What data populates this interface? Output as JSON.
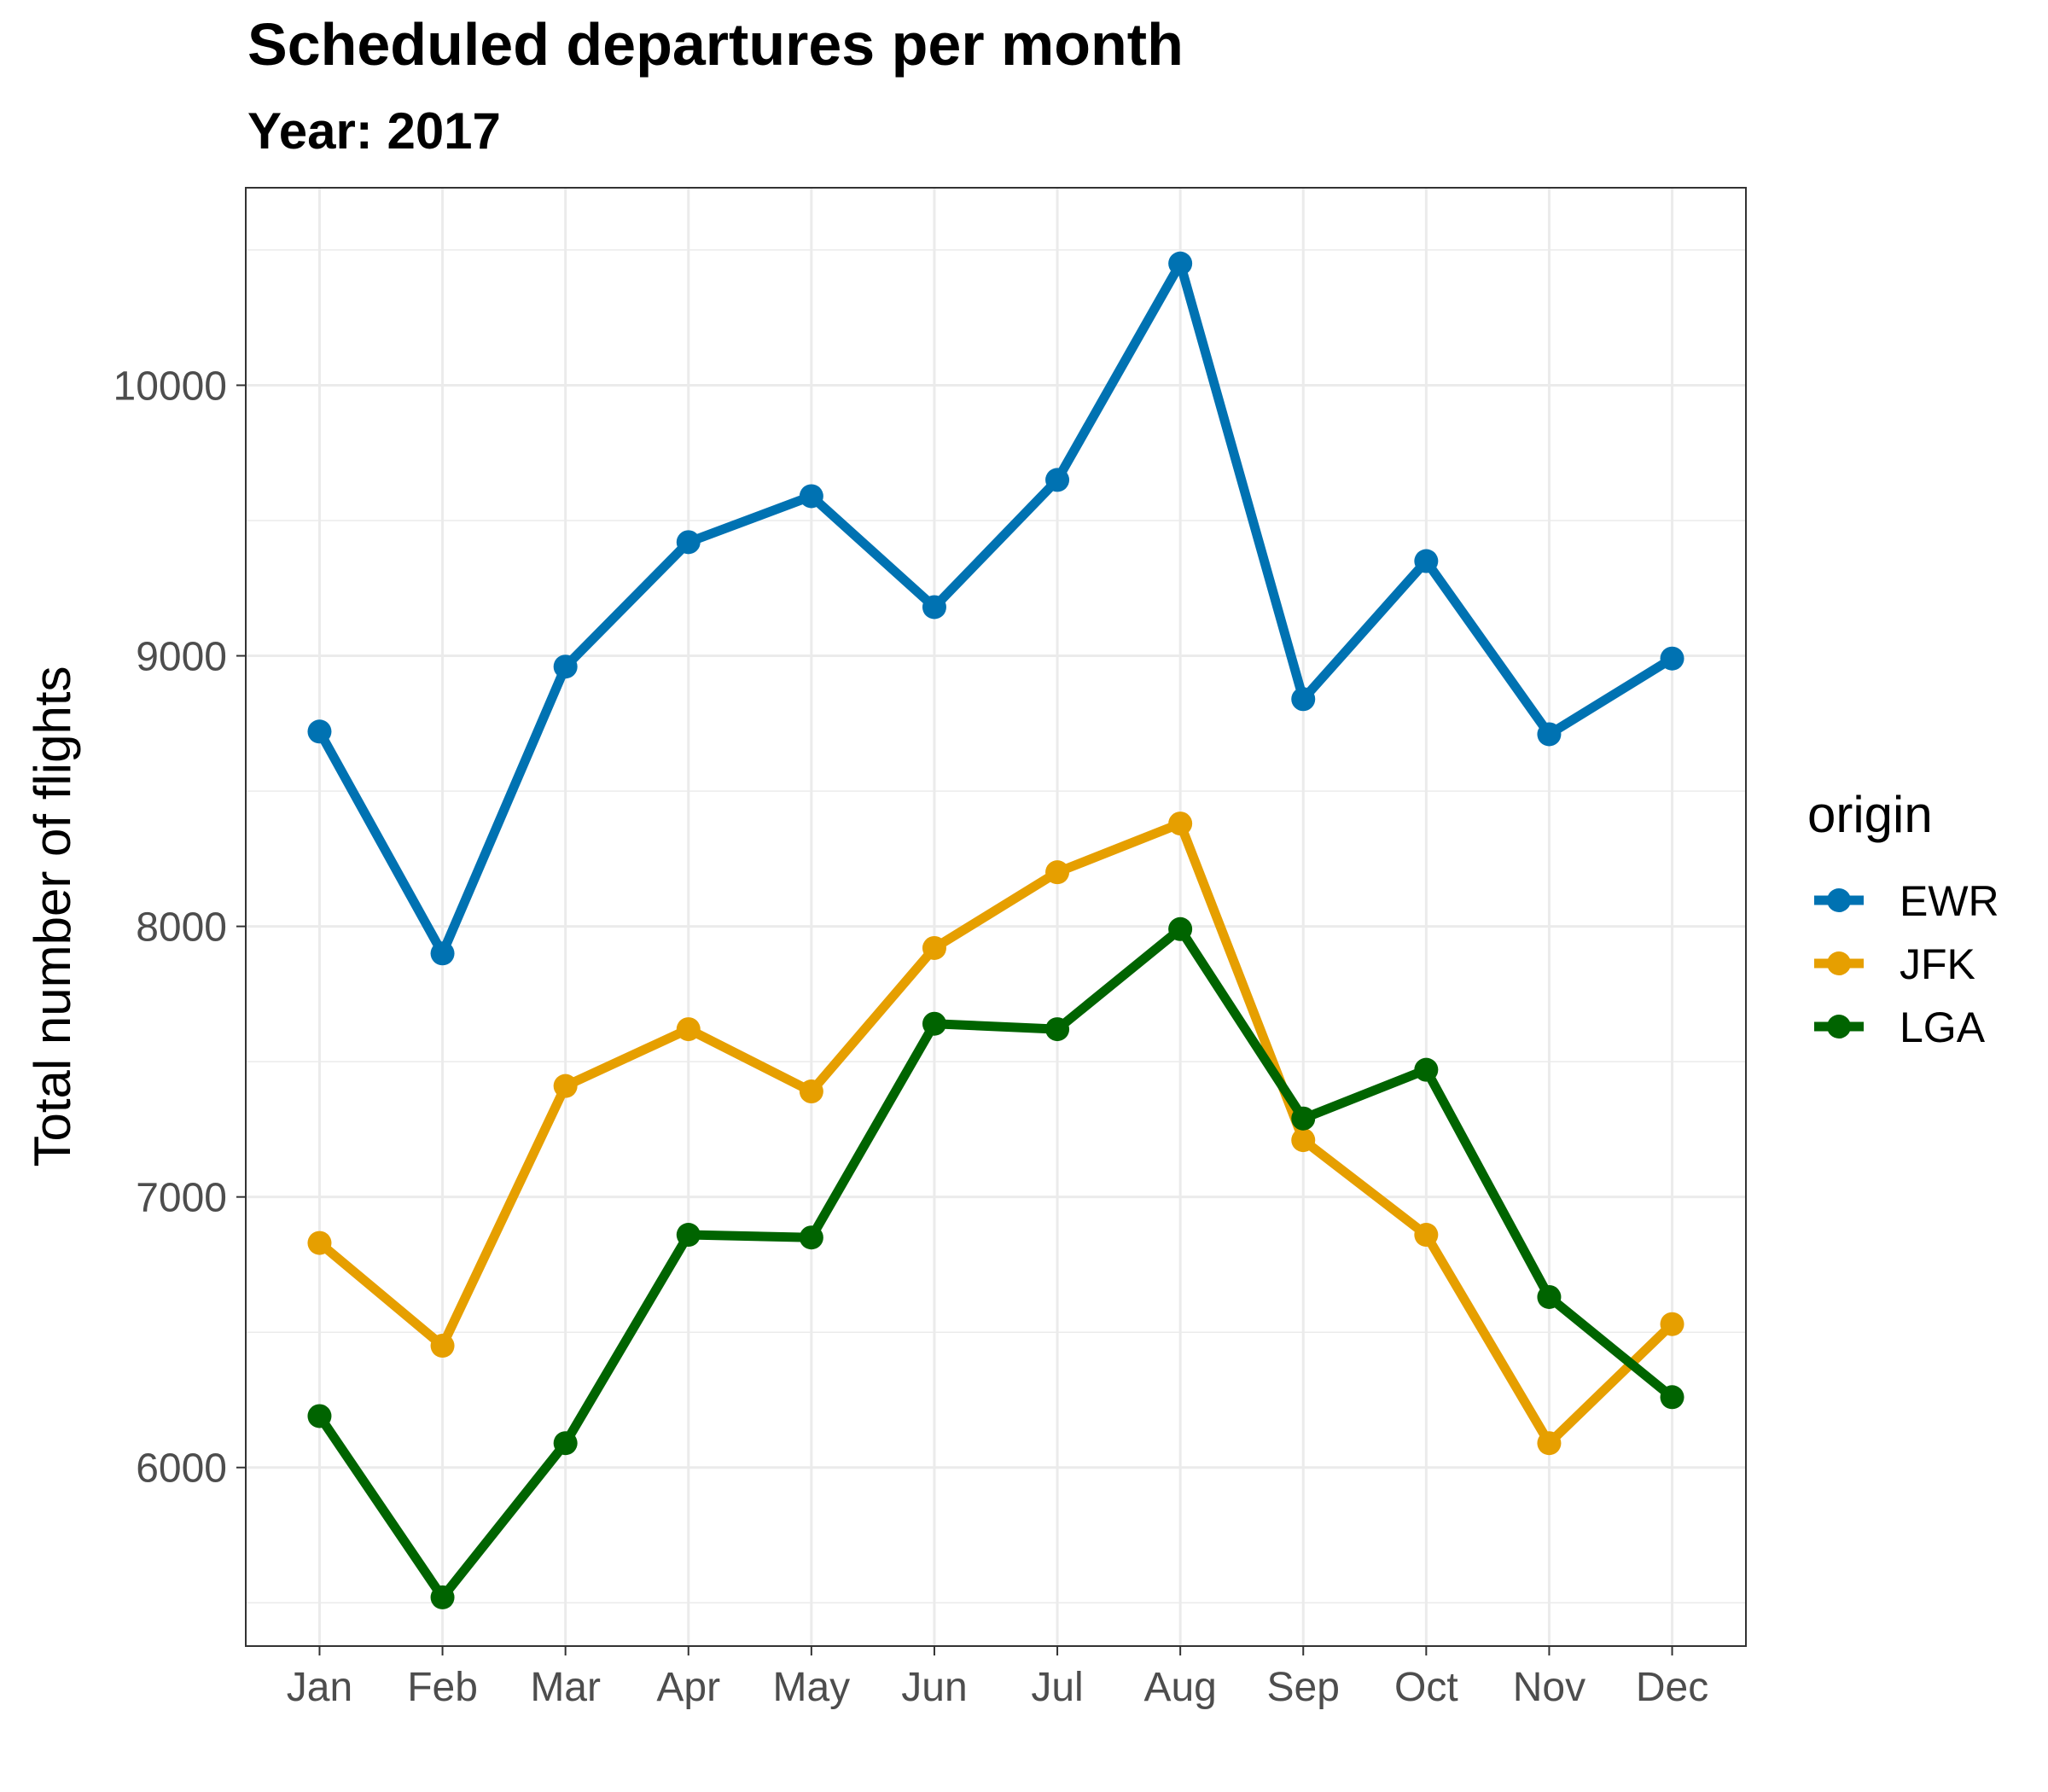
{
  "chart_data": {
    "type": "line",
    "title": "Scheduled departures per month",
    "subtitle": "Year: 2017",
    "xlabel": "",
    "ylabel": "Total number of flights",
    "categories": [
      "Jan",
      "Feb",
      "Mar",
      "Apr",
      "May",
      "Jun",
      "Jul",
      "Aug",
      "Sep",
      "Oct",
      "Nov",
      "Dec"
    ],
    "ylim": [
      5340,
      10730
    ],
    "yticks": [
      6000,
      7000,
      8000,
      9000,
      10000
    ],
    "ytick_labels": [
      "6000",
      "7000",
      "8000",
      "9000",
      "10000"
    ],
    "grid": true,
    "legend": {
      "title": "origin",
      "position": "right"
    },
    "series": [
      {
        "name": "EWR",
        "color": "#0072B2",
        "values": [
          8720,
          7900,
          8960,
          9420,
          9590,
          9180,
          9650,
          10450,
          8840,
          9350,
          8710,
          8990
        ]
      },
      {
        "name": "JFK",
        "color": "#E69F00",
        "values": [
          6830,
          6450,
          7410,
          7620,
          7390,
          7920,
          8200,
          8380,
          7210,
          6860,
          6090,
          6530
        ]
      },
      {
        "name": "LGA",
        "color": "#006400",
        "values": [
          6190,
          5520,
          6090,
          6860,
          6850,
          7640,
          7620,
          7990,
          7290,
          7470,
          6630,
          6260
        ]
      }
    ]
  }
}
